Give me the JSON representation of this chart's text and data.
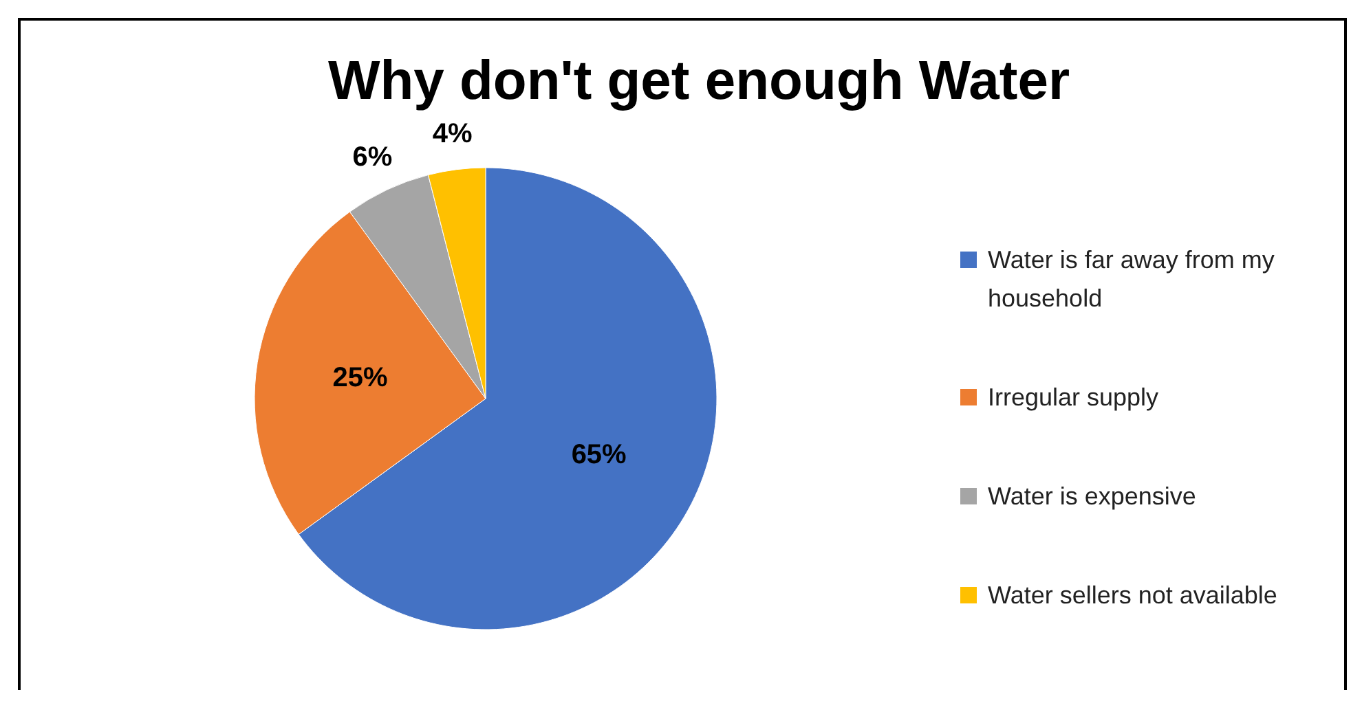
{
  "chart_data": {
    "type": "pie",
    "title": "Why don't get enough Water",
    "categories": [
      "Water is far away from my household",
      "Irregular supply",
      "Water is expensive",
      "Water sellers not available"
    ],
    "values": [
      65,
      25,
      6,
      4
    ],
    "colors": [
      "#4472c4",
      "#ed7d31",
      "#a5a5a5",
      "#ffc000"
    ],
    "value_labels": [
      "65%",
      "25%",
      "6%",
      "4%"
    ],
    "legend": "right"
  }
}
